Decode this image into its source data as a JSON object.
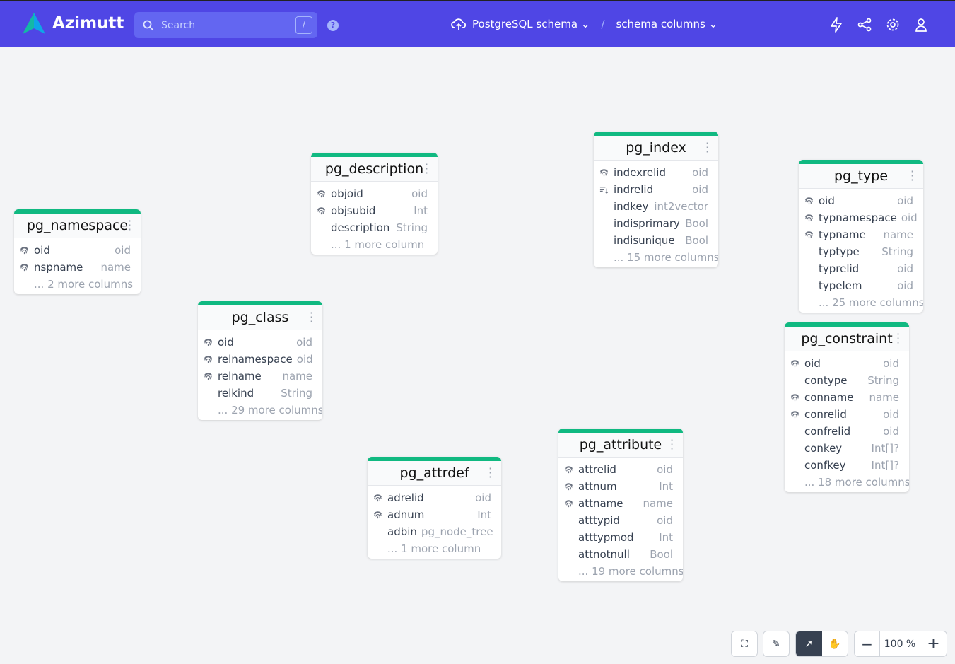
{
  "header": {
    "app_name": "Azimutt",
    "search_placeholder": "Search",
    "search_shortcut": "/",
    "help_icon": "?",
    "project": "PostgreSQL schema",
    "layout": "schema columns",
    "separator": "/"
  },
  "colors": {
    "nav": "#4f46e5",
    "table_accent": "#10b981"
  },
  "tables": [
    {
      "name": "pg_namespace",
      "columns": [
        {
          "name": "oid",
          "type": "oid",
          "icon": "fingerprint"
        },
        {
          "name": "nspname",
          "type": "name",
          "icon": "fingerprint"
        }
      ],
      "more": "... 2 more columns"
    },
    {
      "name": "pg_description",
      "columns": [
        {
          "name": "objoid",
          "type": "oid",
          "icon": "fingerprint"
        },
        {
          "name": "objsubid",
          "type": "Int",
          "icon": "fingerprint"
        },
        {
          "name": "description",
          "type": "String",
          "icon": ""
        }
      ],
      "more": "... 1 more column"
    },
    {
      "name": "pg_index",
      "columns": [
        {
          "name": "indexrelid",
          "type": "oid",
          "icon": "fingerprint"
        },
        {
          "name": "indrelid",
          "type": "oid",
          "icon": "sort"
        },
        {
          "name": "indkey",
          "type": "int2vector",
          "icon": ""
        },
        {
          "name": "indisprimary",
          "type": "Bool",
          "icon": ""
        },
        {
          "name": "indisunique",
          "type": "Bool",
          "icon": ""
        }
      ],
      "more": "... 15 more columns"
    },
    {
      "name": "pg_type",
      "columns": [
        {
          "name": "oid",
          "type": "oid",
          "icon": "fingerprint"
        },
        {
          "name": "typnamespace",
          "type": "oid",
          "icon": "fingerprint"
        },
        {
          "name": "typname",
          "type": "name",
          "icon": "fingerprint"
        },
        {
          "name": "typtype",
          "type": "String",
          "icon": ""
        },
        {
          "name": "typrelid",
          "type": "oid",
          "icon": ""
        },
        {
          "name": "typelem",
          "type": "oid",
          "icon": ""
        }
      ],
      "more": "... 25 more columns"
    },
    {
      "name": "pg_class",
      "columns": [
        {
          "name": "oid",
          "type": "oid",
          "icon": "fingerprint"
        },
        {
          "name": "relnamespace",
          "type": "oid",
          "icon": "fingerprint"
        },
        {
          "name": "relname",
          "type": "name",
          "icon": "fingerprint"
        },
        {
          "name": "relkind",
          "type": "String",
          "icon": ""
        }
      ],
      "more": "... 29 more columns"
    },
    {
      "name": "pg_constraint",
      "columns": [
        {
          "name": "oid",
          "type": "oid",
          "icon": "fingerprint"
        },
        {
          "name": "contype",
          "type": "String",
          "icon": ""
        },
        {
          "name": "conname",
          "type": "name",
          "icon": "fingerprint"
        },
        {
          "name": "conrelid",
          "type": "oid",
          "icon": "fingerprint"
        },
        {
          "name": "confrelid",
          "type": "oid",
          "icon": ""
        },
        {
          "name": "conkey",
          "type": "Int[]?",
          "icon": ""
        },
        {
          "name": "confkey",
          "type": "Int[]?",
          "icon": ""
        }
      ],
      "more": "... 18 more columns"
    },
    {
      "name": "pg_attribute",
      "columns": [
        {
          "name": "attrelid",
          "type": "oid",
          "icon": "fingerprint"
        },
        {
          "name": "attnum",
          "type": "Int",
          "icon": "fingerprint"
        },
        {
          "name": "attname",
          "type": "name",
          "icon": "fingerprint"
        },
        {
          "name": "atttypid",
          "type": "oid",
          "icon": ""
        },
        {
          "name": "atttypmod",
          "type": "Int",
          "icon": ""
        },
        {
          "name": "attnotnull",
          "type": "Bool",
          "icon": ""
        }
      ],
      "more": "... 19 more columns"
    },
    {
      "name": "pg_attrdef",
      "columns": [
        {
          "name": "adrelid",
          "type": "oid",
          "icon": "fingerprint"
        },
        {
          "name": "adnum",
          "type": "Int",
          "icon": "fingerprint"
        },
        {
          "name": "adbin",
          "type": "pg_node_tree",
          "icon": ""
        }
      ],
      "more": "... 1 more column"
    }
  ],
  "controls": {
    "zoom": "100 %",
    "mode": "select"
  }
}
